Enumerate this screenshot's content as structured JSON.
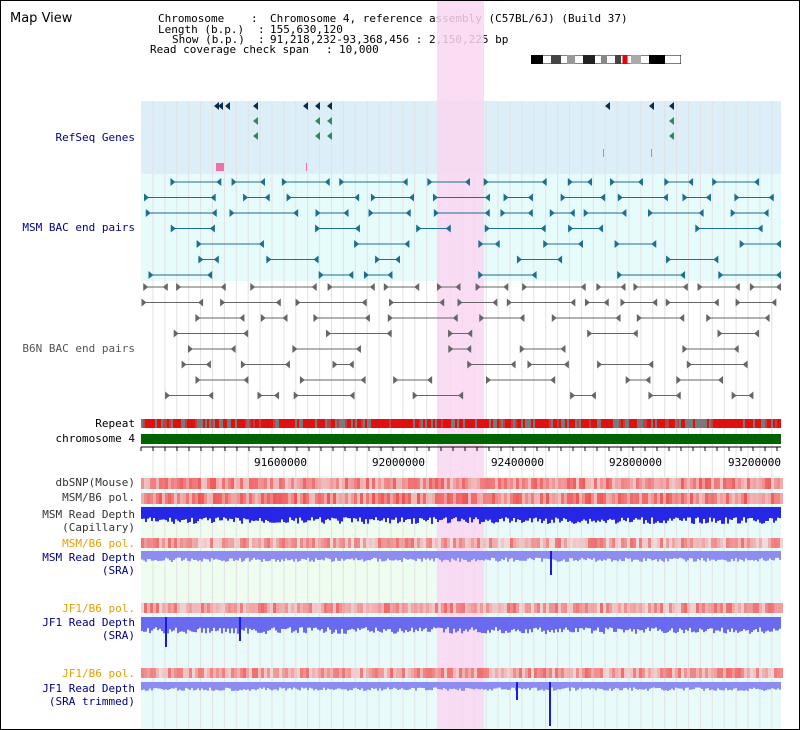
{
  "title": "Map View",
  "info": {
    "chromosome_key": "Chromosome",
    "chromosome_value": "Chromosome 4, reference assembly (C57BL/6J) (Build 37)",
    "length_key": "Length (b.p.)",
    "length_value": "155,630,120",
    "show_key": "Show (b.p.)",
    "show_value": "91,218,232-93,368,456 : 2,150,225 bp",
    "coverage_key": "Read coverage check span",
    "coverage_value": "10,000"
  },
  "labels": {
    "refseq": "RefSeq Genes",
    "msm_bac": "MSM BAC end pairs",
    "b6n_bac": "B6N BAC end pairs",
    "repeat": "Repeat",
    "chromosome": "chromosome 4",
    "dbsnp": "dbSNP(Mouse)",
    "msm_b6_pol": "MSM/B6 pol.",
    "msm_depth_cap_1": "MSM Read Depth",
    "msm_depth_cap_2": "(Capillary)",
    "msm_b6_pol_2": "MSM/B6 pol.",
    "msm_depth_sra_1": "MSM Read Depth",
    "msm_depth_sra_2": "(SRA)",
    "jf1_b6_pol": "JF1/B6 pol.",
    "jf1_depth_sra_1": "JF1 Read Depth",
    "jf1_depth_sra_2": "(SRA)",
    "jf1_b6_pol_2": "JF1/B6 pol.",
    "jf1_depth_trim_1": "JF1 Read Depth",
    "jf1_depth_trim_2": "(SRA trimmed)"
  },
  "ticks": [
    "91600000",
    "92000000",
    "92400000",
    "92800000",
    "93200000"
  ],
  "colors": {
    "refseq_bg": "#dceff9",
    "msm_bac_bg": "#e6fbfb",
    "highlight": "#f9d6f1",
    "chromosome": "#006400",
    "msm_gene": "#1e6e8c",
    "b6n_gene": "#666666",
    "depth_blue": "#2626e6",
    "depth_light": "#8c8cf2",
    "pol_red": "#f08080"
  }
}
